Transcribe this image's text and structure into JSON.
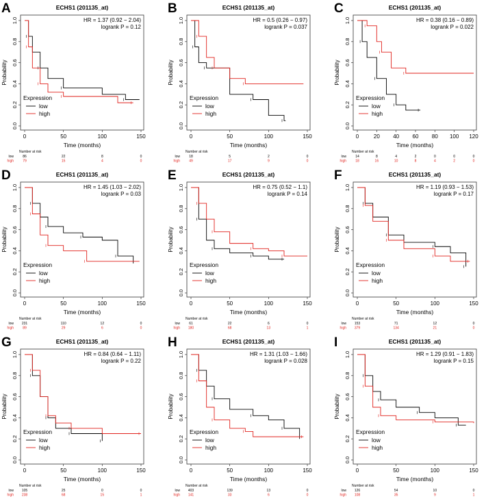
{
  "colors": {
    "low": "#000000",
    "high": "#e0201b"
  },
  "chart_data": [
    {
      "type": "line",
      "panel": "A",
      "title": "ECHS1 (201135_at)",
      "xlabel": "Time (months)",
      "ylabel": "Probability",
      "xlim": [
        0,
        150
      ],
      "xticks": [
        0,
        50,
        100,
        150
      ],
      "ylim": [
        0,
        1
      ],
      "yticks": [
        0,
        0.2,
        0.4,
        0.6,
        0.8,
        1.0
      ],
      "hr": "HR = 1.37 (0.92 − 2.04)",
      "logrank": "logrank P = 0.12",
      "legend_title": "Expression",
      "legend_position": "bottom-left",
      "risk_title": "Number at risk",
      "risk_times": [
        0,
        50,
        100,
        150
      ],
      "series": [
        {
          "name": "low",
          "points": [
            [
              0,
              1
            ],
            [
              5,
              0.85
            ],
            [
              10,
              0.7
            ],
            [
              20,
              0.55
            ],
            [
              30,
              0.45
            ],
            [
              50,
              0.36
            ],
            [
              100,
              0.3
            ],
            [
              130,
              0.25
            ],
            [
              148,
              0.25
            ]
          ],
          "at_risk": [
            86,
            22,
            8,
            0
          ]
        },
        {
          "name": "high",
          "points": [
            [
              0,
              1
            ],
            [
              5,
              0.75
            ],
            [
              10,
              0.55
            ],
            [
              20,
              0.4
            ],
            [
              30,
              0.32
            ],
            [
              50,
              0.28
            ],
            [
              120,
              0.22
            ],
            [
              140,
              0.22
            ]
          ],
          "at_risk": [
            79,
            15,
            4,
            0
          ]
        }
      ]
    },
    {
      "type": "line",
      "panel": "B",
      "title": "ECHS1 (201135_at)",
      "xlabel": "Time (months)",
      "ylabel": "Probability",
      "xlim": [
        0,
        150
      ],
      "xticks": [
        0,
        50,
        100,
        150
      ],
      "ylim": [
        0,
        1
      ],
      "yticks": [
        0,
        0.2,
        0.4,
        0.6,
        0.8,
        1.0
      ],
      "hr": "HR = 0.5 (0.26 − 0.97)",
      "logrank": "logrank P = 0.037",
      "legend_title": "Expression",
      "legend_position": "bottom-left",
      "risk_title": "Number at risk",
      "risk_times": [
        0,
        50,
        100,
        150
      ],
      "series": [
        {
          "name": "low",
          "points": [
            [
              0,
              1
            ],
            [
              5,
              0.75
            ],
            [
              10,
              0.6
            ],
            [
              20,
              0.55
            ],
            [
              50,
              0.3
            ],
            [
              80,
              0.25
            ],
            [
              100,
              0.1
            ],
            [
              120,
              0.05
            ],
            [
              122,
              0.05
            ]
          ],
          "at_risk": [
            18,
            5,
            2,
            0
          ]
        },
        {
          "name": "high",
          "points": [
            [
              0,
              1
            ],
            [
              10,
              0.85
            ],
            [
              20,
              0.65
            ],
            [
              30,
              0.55
            ],
            [
              50,
              0.45
            ],
            [
              70,
              0.4
            ],
            [
              145,
              0.4
            ]
          ],
          "at_risk": [
            49,
            17,
            9,
            0
          ]
        }
      ]
    },
    {
      "type": "line",
      "panel": "C",
      "title": "ECHS1 (201135_at)",
      "xlabel": "Time (months)",
      "ylabel": "Probability",
      "xlim": [
        0,
        120
      ],
      "xticks": [
        0,
        20,
        40,
        60,
        80,
        100,
        120
      ],
      "ylim": [
        0,
        1
      ],
      "yticks": [
        0,
        0.2,
        0.4,
        0.6,
        0.8,
        1.0
      ],
      "hr": "HR = 0.38 (0.16 − 0.89)",
      "logrank": "logrank P = 0.022",
      "legend_title": "Expression",
      "legend_position": "bottom-left",
      "risk_title": "Number at risk",
      "risk_times": [
        0,
        20,
        40,
        60,
        80,
        100,
        120
      ],
      "series": [
        {
          "name": "low",
          "points": [
            [
              0,
              1
            ],
            [
              5,
              0.8
            ],
            [
              10,
              0.65
            ],
            [
              20,
              0.45
            ],
            [
              30,
              0.3
            ],
            [
              40,
              0.2
            ],
            [
              50,
              0.15
            ],
            [
              65,
              0.15
            ]
          ],
          "at_risk": [
            14,
            8,
            4,
            2,
            0,
            0,
            0
          ]
        },
        {
          "name": "high",
          "points": [
            [
              0,
              1
            ],
            [
              10,
              0.95
            ],
            [
              20,
              0.8
            ],
            [
              25,
              0.7
            ],
            [
              35,
              0.55
            ],
            [
              50,
              0.5
            ],
            [
              120,
              0.5
            ]
          ],
          "at_risk": [
            18,
            16,
            10,
            8,
            4,
            2,
            0
          ]
        }
      ]
    },
    {
      "type": "line",
      "panel": "D",
      "title": "ECHS1 (201135_at)",
      "xlabel": "Time (months)",
      "ylabel": "Probability",
      "xlim": [
        0,
        150
      ],
      "xticks": [
        0,
        50,
        100,
        150
      ],
      "ylim": [
        0,
        1
      ],
      "yticks": [
        0,
        0.2,
        0.4,
        0.6,
        0.8,
        1.0
      ],
      "hr": "HR = 1.45 (1.03 − 2.02)",
      "logrank": "logrank P = 0.03",
      "legend_title": "Expression",
      "legend_position": "bottom-left",
      "risk_title": "Number at risk",
      "risk_times": [
        0,
        50,
        100,
        150
      ],
      "series": [
        {
          "name": "low",
          "points": [
            [
              0,
              1
            ],
            [
              10,
              0.85
            ],
            [
              20,
              0.72
            ],
            [
              30,
              0.63
            ],
            [
              50,
              0.57
            ],
            [
              75,
              0.53
            ],
            [
              100,
              0.5
            ],
            [
              120,
              0.35
            ],
            [
              140,
              0.28
            ]
          ],
          "at_risk": [
            231,
            110,
            12,
            0
          ]
        },
        {
          "name": "high",
          "points": [
            [
              0,
              1
            ],
            [
              10,
              0.75
            ],
            [
              20,
              0.55
            ],
            [
              30,
              0.45
            ],
            [
              50,
              0.4
            ],
            [
              80,
              0.3
            ],
            [
              148,
              0.3
            ]
          ],
          "at_risk": [
            89,
            29,
            6,
            0
          ]
        }
      ]
    },
    {
      "type": "line",
      "panel": "E",
      "title": "ECHS1 (201135_at)",
      "xlabel": "Time (months)",
      "ylabel": "Probability",
      "xlim": [
        0,
        150
      ],
      "xticks": [
        0,
        50,
        100,
        150
      ],
      "ylim": [
        0,
        1
      ],
      "yticks": [
        0,
        0.2,
        0.4,
        0.6,
        0.8,
        1.0
      ],
      "hr": "HR = 0.75 (0.52 − 1.1)",
      "logrank": "logrank P = 0.14",
      "legend_title": "Expression",
      "legend_position": "bottom-left",
      "risk_title": "Number at risk",
      "risk_times": [
        0,
        50,
        100,
        150
      ],
      "series": [
        {
          "name": "low",
          "points": [
            [
              0,
              1
            ],
            [
              10,
              0.7
            ],
            [
              20,
              0.5
            ],
            [
              30,
              0.42
            ],
            [
              50,
              0.38
            ],
            [
              80,
              0.35
            ],
            [
              100,
              0.32
            ],
            [
              120,
              0.32
            ]
          ],
          "at_risk": [
            61,
            22,
            6,
            0
          ]
        },
        {
          "name": "high",
          "points": [
            [
              0,
              1
            ],
            [
              10,
              0.85
            ],
            [
              20,
              0.7
            ],
            [
              30,
              0.58
            ],
            [
              50,
              0.47
            ],
            [
              80,
              0.42
            ],
            [
              100,
              0.4
            ],
            [
              120,
              0.35
            ],
            [
              150,
              0.35
            ]
          ],
          "at_risk": [
            180,
            68,
            13,
            1
          ]
        }
      ]
    },
    {
      "type": "line",
      "panel": "F",
      "title": "ECHS1 (201135_at)",
      "xlabel": "Time (months)",
      "ylabel": "Probability",
      "xlim": [
        0,
        150
      ],
      "xticks": [
        0,
        50,
        100,
        150
      ],
      "ylim": [
        0,
        1
      ],
      "yticks": [
        0,
        0.2,
        0.4,
        0.6,
        0.8,
        1.0
      ],
      "hr": "HR = 1.19 (0.93 − 1.53)",
      "logrank": "logrank P = 0.17",
      "legend_title": "Expression",
      "legend_position": "bottom-left",
      "risk_title": "Number at risk",
      "risk_times": [
        0,
        50,
        100,
        150
      ],
      "series": [
        {
          "name": "low",
          "points": [
            [
              0,
              1
            ],
            [
              10,
              0.85
            ],
            [
              20,
              0.72
            ],
            [
              40,
              0.55
            ],
            [
              60,
              0.48
            ],
            [
              100,
              0.44
            ],
            [
              120,
              0.38
            ],
            [
              140,
              0.25
            ]
          ],
          "at_risk": [
            153,
            71,
            12,
            0
          ]
        },
        {
          "name": "high",
          "points": [
            [
              0,
              1
            ],
            [
              10,
              0.83
            ],
            [
              20,
              0.68
            ],
            [
              40,
              0.5
            ],
            [
              60,
              0.42
            ],
            [
              100,
              0.35
            ],
            [
              120,
              0.3
            ],
            [
              145,
              0.3
            ]
          ],
          "at_risk": [
            379,
            134,
            21,
            0
          ]
        }
      ]
    },
    {
      "type": "line",
      "panel": "G",
      "title": "ECHS1 (201135_at)",
      "xlabel": "Time (months)",
      "ylabel": "Probability",
      "xlim": [
        0,
        150
      ],
      "xticks": [
        0,
        50,
        100,
        150
      ],
      "ylim": [
        0,
        1
      ],
      "yticks": [
        0,
        0.2,
        0.4,
        0.6,
        0.8,
        1.0
      ],
      "hr": "HR = 0.84 (0.64 − 1.11)",
      "logrank": "logrank P = 0.22",
      "legend_title": "Expression",
      "legend_position": "bottom-left",
      "risk_title": "Number at risk",
      "risk_times": [
        0,
        50,
        100,
        150
      ],
      "series": [
        {
          "name": "low",
          "points": [
            [
              0,
              1
            ],
            [
              10,
              0.8
            ],
            [
              20,
              0.6
            ],
            [
              30,
              0.4
            ],
            [
              40,
              0.3
            ],
            [
              60,
              0.25
            ],
            [
              90,
              0.25
            ],
            [
              100,
              0.18
            ]
          ],
          "at_risk": [
            105,
            25,
            0,
            0
          ]
        },
        {
          "name": "high",
          "points": [
            [
              0,
              1
            ],
            [
              10,
              0.85
            ],
            [
              20,
              0.6
            ],
            [
              30,
              0.42
            ],
            [
              40,
              0.35
            ],
            [
              60,
              0.3
            ],
            [
              100,
              0.25
            ],
            [
              150,
              0.25
            ]
          ],
          "at_risk": [
            238,
            68,
            15,
            1
          ]
        }
      ]
    },
    {
      "type": "line",
      "panel": "H",
      "title": "ECHS1 (201135_at)",
      "xlabel": "Time (months)",
      "ylabel": "Probability",
      "xlim": [
        0,
        150
      ],
      "xticks": [
        0,
        50,
        100,
        150
      ],
      "ylim": [
        0,
        1
      ],
      "yticks": [
        0,
        0.2,
        0.4,
        0.6,
        0.8,
        1.0
      ],
      "hr": "HR = 1.31 (1.03 − 1.66)",
      "logrank": "logrank P = 0.028",
      "legend_title": "Expression",
      "legend_position": "bottom-left",
      "risk_title": "Number at risk",
      "risk_times": [
        0,
        50,
        100,
        150
      ],
      "series": [
        {
          "name": "low",
          "points": [
            [
              0,
              1
            ],
            [
              10,
              0.85
            ],
            [
              20,
              0.7
            ],
            [
              30,
              0.58
            ],
            [
              50,
              0.48
            ],
            [
              80,
              0.42
            ],
            [
              100,
              0.38
            ],
            [
              120,
              0.3
            ],
            [
              140,
              0.2
            ]
          ],
          "at_risk": [
            403,
            139,
            13,
            0
          ]
        },
        {
          "name": "high",
          "points": [
            [
              0,
              1
            ],
            [
              10,
              0.75
            ],
            [
              20,
              0.5
            ],
            [
              30,
              0.38
            ],
            [
              50,
              0.3
            ],
            [
              70,
              0.27
            ],
            [
              80,
              0.22
            ],
            [
              145,
              0.22
            ]
          ],
          "at_risk": [
            141,
            33,
            6,
            0
          ]
        }
      ]
    },
    {
      "type": "line",
      "panel": "I",
      "title": "ECHS1 (201135_at)",
      "xlabel": "Time (months)",
      "ylabel": "Probability",
      "xlim": [
        0,
        150
      ],
      "xticks": [
        0,
        50,
        100,
        150
      ],
      "ylim": [
        0,
        1
      ],
      "yticks": [
        0,
        0.2,
        0.4,
        0.6,
        0.8,
        1.0
      ],
      "hr": "HR = 1.29 (0.91 − 1.83)",
      "logrank": "logrank P = 0.15",
      "legend_title": "Expression",
      "legend_position": "bottom-left",
      "risk_title": "Number at risk",
      "risk_times": [
        0,
        50,
        100,
        150
      ],
      "series": [
        {
          "name": "low",
          "points": [
            [
              0,
              1
            ],
            [
              10,
              0.8
            ],
            [
              20,
              0.65
            ],
            [
              30,
              0.57
            ],
            [
              50,
              0.5
            ],
            [
              80,
              0.45
            ],
            [
              100,
              0.4
            ],
            [
              130,
              0.33
            ],
            [
              140,
              0.33
            ]
          ],
          "at_risk": [
            126,
            54,
            10,
            0
          ]
        },
        {
          "name": "high",
          "points": [
            [
              0,
              1
            ],
            [
              10,
              0.7
            ],
            [
              20,
              0.5
            ],
            [
              30,
              0.42
            ],
            [
              50,
              0.38
            ],
            [
              100,
              0.36
            ],
            [
              150,
              0.35
            ]
          ],
          "at_risk": [
            108,
            35,
            9,
            1
          ]
        }
      ]
    }
  ]
}
